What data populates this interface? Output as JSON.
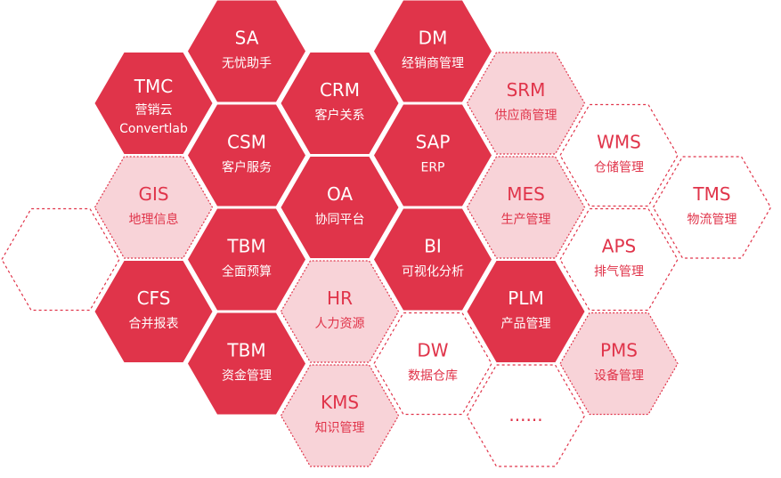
{
  "colors": {
    "solid": "#e0344a",
    "light": "#f8d3d8",
    "outline": "#e0344a",
    "text_on_solid": "#ffffff",
    "text_on_light": "#e0344a"
  },
  "hexes": [
    {
      "style": "outline",
      "lines": []
    },
    {
      "style": "solid",
      "lines": [
        "TMC",
        "营销云",
        "Convertlab"
      ]
    },
    {
      "style": "light",
      "lines": [
        "GIS",
        "地理信息"
      ]
    },
    {
      "style": "solid",
      "lines": [
        "CFS",
        "合并报表"
      ]
    },
    {
      "style": "solid",
      "lines": [
        "SA",
        "无忧助手"
      ]
    },
    {
      "style": "solid",
      "lines": [
        "CSM",
        "客户服务"
      ]
    },
    {
      "style": "solid",
      "lines": [
        "TBM",
        "全面预算"
      ]
    },
    {
      "style": "solid",
      "lines": [
        "TBM",
        "资金管理"
      ]
    },
    {
      "style": "solid",
      "lines": [
        "CRM",
        "客户关系"
      ]
    },
    {
      "style": "solid",
      "lines": [
        "OA",
        "协同平台"
      ]
    },
    {
      "style": "light",
      "lines": [
        "HR",
        "人力资源"
      ]
    },
    {
      "style": "light",
      "lines": [
        "KMS",
        "知识管理"
      ]
    },
    {
      "style": "solid",
      "lines": [
        "DM",
        "经销商管理"
      ]
    },
    {
      "style": "solid",
      "lines": [
        "SAP",
        "ERP"
      ]
    },
    {
      "style": "solid",
      "lines": [
        "BI",
        "可视化分析"
      ]
    },
    {
      "style": "outline",
      "lines": [
        "DW",
        "数据仓库"
      ]
    },
    {
      "style": "light",
      "lines": [
        "SRM",
        "供应商管理"
      ]
    },
    {
      "style": "light",
      "lines": [
        "MES",
        "生产管理"
      ]
    },
    {
      "style": "solid",
      "lines": [
        "PLM",
        "产品管理"
      ]
    },
    {
      "style": "outline",
      "lines": [
        "......"
      ]
    },
    {
      "style": "outline",
      "lines": [
        "WMS",
        "仓储管理"
      ]
    },
    {
      "style": "outline",
      "lines": [
        "APS",
        "排气管理"
      ]
    },
    {
      "style": "light",
      "lines": [
        "PMS",
        "设备管理"
      ]
    },
    {
      "style": "outline",
      "lines": [
        "TMS",
        "物流管理"
      ]
    }
  ]
}
